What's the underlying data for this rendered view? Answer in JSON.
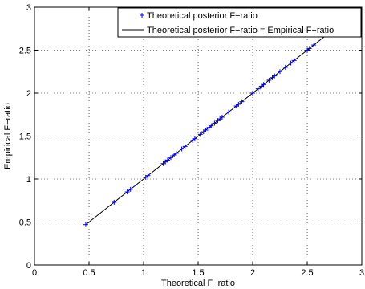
{
  "chart_data": {
    "type": "scatter",
    "title": "",
    "xlabel": "Theoretical F−ratio",
    "ylabel": "Empirical F−ratio",
    "xlim": [
      0,
      3
    ],
    "ylim": [
      0,
      3
    ],
    "xticks": [
      0,
      0.5,
      1,
      1.5,
      2,
      2.5,
      3
    ],
    "yticks": [
      0,
      0.5,
      1,
      1.5,
      2,
      2.5,
      3
    ],
    "xtick_labels": [
      "0",
      "0.5",
      "1",
      "1.5",
      "2",
      "2.5",
      "3"
    ],
    "ytick_labels": [
      "0",
      "0.5",
      "1",
      "1.5",
      "2",
      "2.5",
      "3"
    ],
    "grid": true,
    "legend_position": "top-right",
    "series": [
      {
        "name": "Theoretical posterior F−ratio",
        "kind": "scatter",
        "marker": "+",
        "color": "#0000ff",
        "x": [
          0.47,
          0.73,
          0.85,
          0.88,
          0.93,
          1.02,
          1.04,
          1.18,
          1.2,
          1.22,
          1.25,
          1.28,
          1.3,
          1.35,
          1.38,
          1.45,
          1.47,
          1.52,
          1.55,
          1.57,
          1.6,
          1.62,
          1.65,
          1.68,
          1.7,
          1.72,
          1.78,
          1.85,
          1.87,
          1.9,
          2.0,
          2.05,
          2.08,
          2.1,
          2.15,
          2.18,
          2.2,
          2.25,
          2.3,
          2.35,
          2.38,
          2.5,
          2.52,
          2.56
        ],
        "y": [
          0.47,
          0.73,
          0.85,
          0.88,
          0.93,
          1.02,
          1.04,
          1.18,
          1.2,
          1.22,
          1.25,
          1.28,
          1.3,
          1.35,
          1.38,
          1.45,
          1.47,
          1.52,
          1.55,
          1.57,
          1.6,
          1.62,
          1.65,
          1.68,
          1.7,
          1.72,
          1.78,
          1.85,
          1.87,
          1.9,
          2.0,
          2.05,
          2.08,
          2.1,
          2.15,
          2.18,
          2.2,
          2.25,
          2.3,
          2.35,
          2.38,
          2.5,
          2.52,
          2.56
        ]
      },
      {
        "name": "Theoretical posterior F−ratio = Empirical F−ratio",
        "kind": "line",
        "color": "#000000",
        "x": [
          0.47,
          2.73
        ],
        "y": [
          0.47,
          2.73
        ]
      }
    ]
  }
}
